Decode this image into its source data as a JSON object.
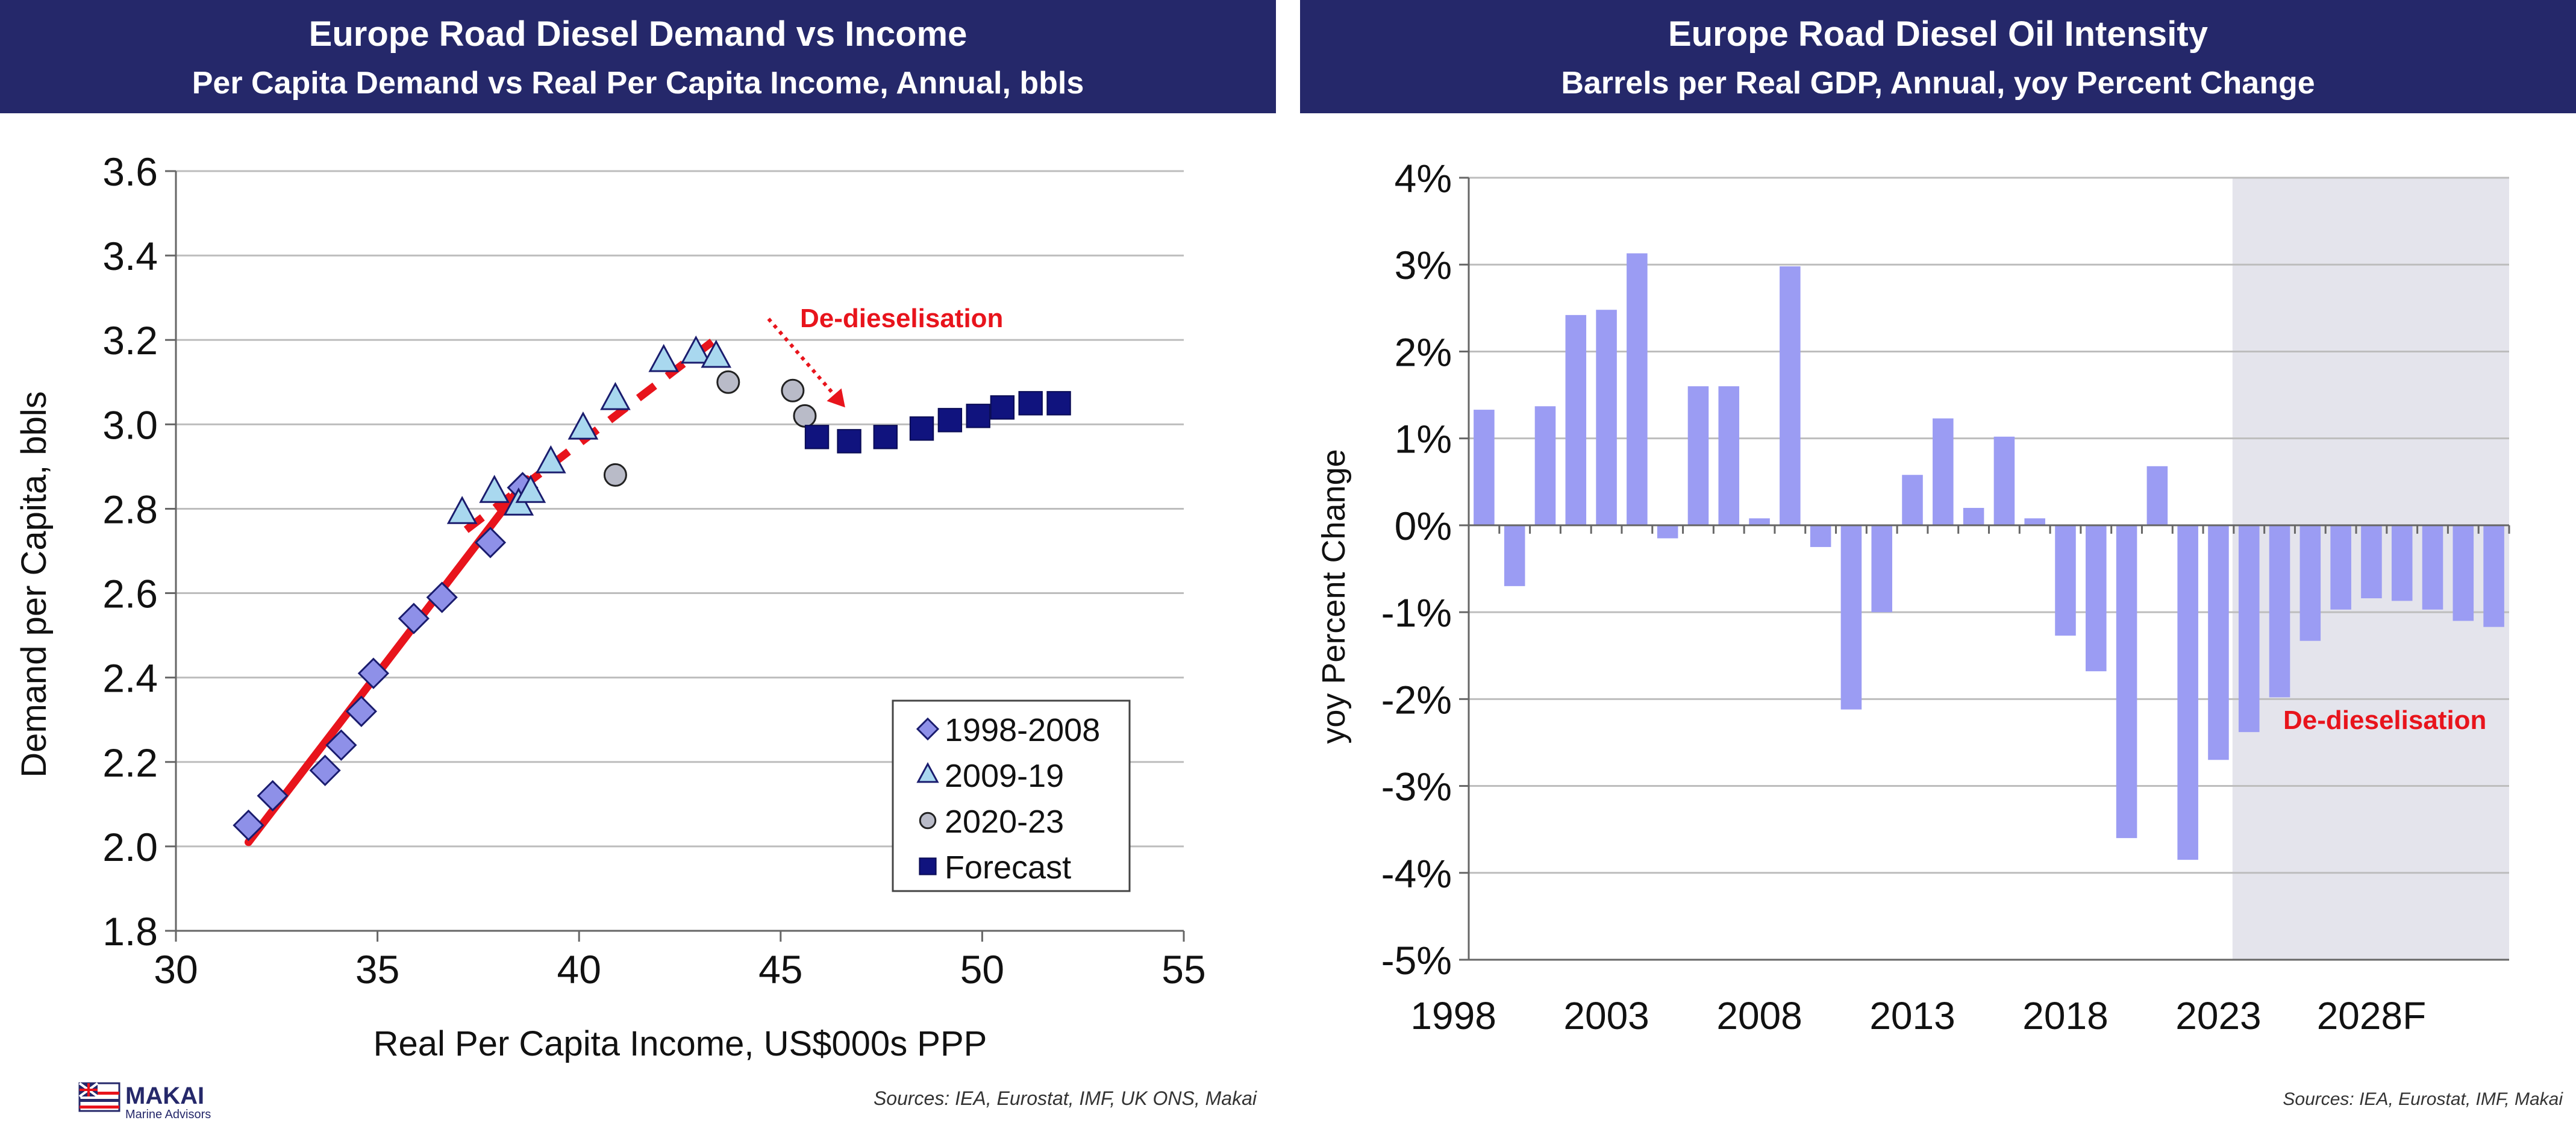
{
  "colors": {
    "header_bg": "#25286a",
    "header_text": "#ffffff",
    "annotation_red": "#e8141c",
    "bar_fill": "#9b9cf3",
    "forecast_shade": "#e4e4ec",
    "gridline": "#bdbdbd",
    "series_1998": "#8e90e8",
    "series_2009": "#a9d8ef",
    "series_2020": "#b9bbc8",
    "series_forecast": "#10137e",
    "axis_text": "#111111"
  },
  "left_chart": {
    "title": "Europe Road Diesel Demand vs Income",
    "subtitle": "Per Capita Demand vs Real Per Capita Income, Annual, bbls",
    "annotation": "De-dieselisation",
    "source": "Sources: IEA, Eurostat, IMF, UK ONS, Makai"
  },
  "right_chart": {
    "title": "Europe Road Diesel Oil Intensity",
    "subtitle": "Barrels per Real GDP, Annual, yoy Percent Change",
    "annotation": "De-dieselisation",
    "source": "Sources: IEA, Eurostat, IMF, Makai"
  },
  "logo": {
    "name": "MAKAI",
    "tagline": "Marine Advisors"
  },
  "chart_data": [
    {
      "type": "scatter",
      "title": "Europe Road Diesel Demand vs Income",
      "subtitle": "Per Capita Demand vs Real Per Capita Income, Annual, bbls",
      "xlabel": "Real Per Capita Income, US$000s PPP",
      "ylabel": "Demand per Capita, bbls",
      "xlim": [
        30,
        55
      ],
      "ylim": [
        1.8,
        3.6
      ],
      "xticks": [
        30,
        35,
        40,
        45,
        50,
        55
      ],
      "yticks": [
        "1.8",
        "2.0",
        "2.2",
        "2.4",
        "2.6",
        "2.8",
        "3.0",
        "3.2",
        "3.4",
        "3.6"
      ],
      "grid": "horizontal",
      "legend_position": "bottom-right",
      "series": [
        {
          "name": "1998-2008",
          "marker": "diamond",
          "points": [
            [
              31.8,
              2.05
            ],
            [
              32.4,
              2.12
            ],
            [
              33.7,
              2.18
            ],
            [
              34.1,
              2.24
            ],
            [
              34.6,
              2.32
            ],
            [
              34.9,
              2.41
            ],
            [
              35.9,
              2.54
            ],
            [
              36.6,
              2.59
            ],
            [
              37.8,
              2.72
            ],
            [
              38.6,
              2.85
            ]
          ]
        },
        {
          "name": "2009-19",
          "marker": "triangle",
          "points": [
            [
              37.1,
              2.79
            ],
            [
              37.9,
              2.84
            ],
            [
              38.5,
              2.81
            ],
            [
              38.8,
              2.84
            ],
            [
              39.3,
              2.91
            ],
            [
              40.1,
              2.99
            ],
            [
              40.9,
              3.06
            ],
            [
              42.1,
              3.15
            ],
            [
              42.9,
              3.17
            ],
            [
              43.4,
              3.16
            ]
          ]
        },
        {
          "name": "2020-23",
          "marker": "circle",
          "points": [
            [
              40.9,
              2.88
            ],
            [
              43.7,
              3.1
            ],
            [
              45.3,
              3.08
            ],
            [
              45.6,
              3.02
            ]
          ]
        },
        {
          "name": "Forecast",
          "marker": "square",
          "points": [
            [
              45.9,
              2.97
            ],
            [
              46.7,
              2.96
            ],
            [
              47.6,
              2.97
            ],
            [
              48.5,
              2.99
            ],
            [
              49.2,
              3.01
            ],
            [
              49.9,
              3.02
            ],
            [
              50.5,
              3.04
            ],
            [
              51.2,
              3.05
            ],
            [
              51.9,
              3.05
            ]
          ]
        }
      ],
      "trendlines": [
        {
          "style": "solid",
          "from": [
            31.8,
            2.01
          ],
          "to": [
            38.7,
            2.87
          ]
        },
        {
          "style": "dashed",
          "from": [
            37.2,
            2.75
          ],
          "to": [
            43.5,
            3.21
          ]
        }
      ],
      "annotations": [
        {
          "text": "De-dieselisation",
          "arrow_from": [
            44.7,
            3.25
          ],
          "arrow_to": [
            46.6,
            3.04
          ]
        }
      ]
    },
    {
      "type": "bar",
      "title": "Europe Road Diesel Oil Intensity",
      "subtitle": "Barrels per Real GDP, Annual, yoy Percent Change",
      "ylabel": "yoy Percent Change",
      "xlabel": "",
      "ylim": [
        -5,
        4
      ],
      "yticks": [
        "4%",
        "3%",
        "2%",
        "1%",
        "0%",
        "-1%",
        "-2%",
        "-3%",
        "-4%",
        "-5%"
      ],
      "xtick_labels": [
        "1998",
        "2003",
        "2008",
        "2013",
        "2018",
        "2023",
        "2028F"
      ],
      "grid": "horizontal",
      "forecast_shaded_from": 2024,
      "categories": [
        1999,
        2000,
        2001,
        2002,
        2003,
        2004,
        2005,
        2006,
        2007,
        2008,
        2009,
        2010,
        2011,
        2012,
        2013,
        2014,
        2015,
        2016,
        2017,
        2018,
        2019,
        2020,
        2021,
        2022,
        2023,
        2024,
        2025,
        2026,
        2027,
        2028,
        2029,
        2030,
        2031,
        2032
      ],
      "values": [
        1.33,
        -0.7,
        1.37,
        2.42,
        2.48,
        3.13,
        -0.15,
        1.6,
        1.6,
        0.08,
        2.98,
        -0.25,
        -2.12,
        -1.0,
        0.58,
        1.23,
        0.2,
        1.02,
        0.08,
        -1.27,
        -1.68,
        -3.6,
        0.68,
        -3.85,
        -2.7,
        -2.38,
        -1.98,
        -1.33,
        -0.97,
        -0.84,
        -0.87,
        -0.97,
        -1.1,
        -1.17
      ],
      "annotations": [
        {
          "text": "De-dieselisation",
          "position": "inside forecast shading"
        }
      ]
    }
  ]
}
